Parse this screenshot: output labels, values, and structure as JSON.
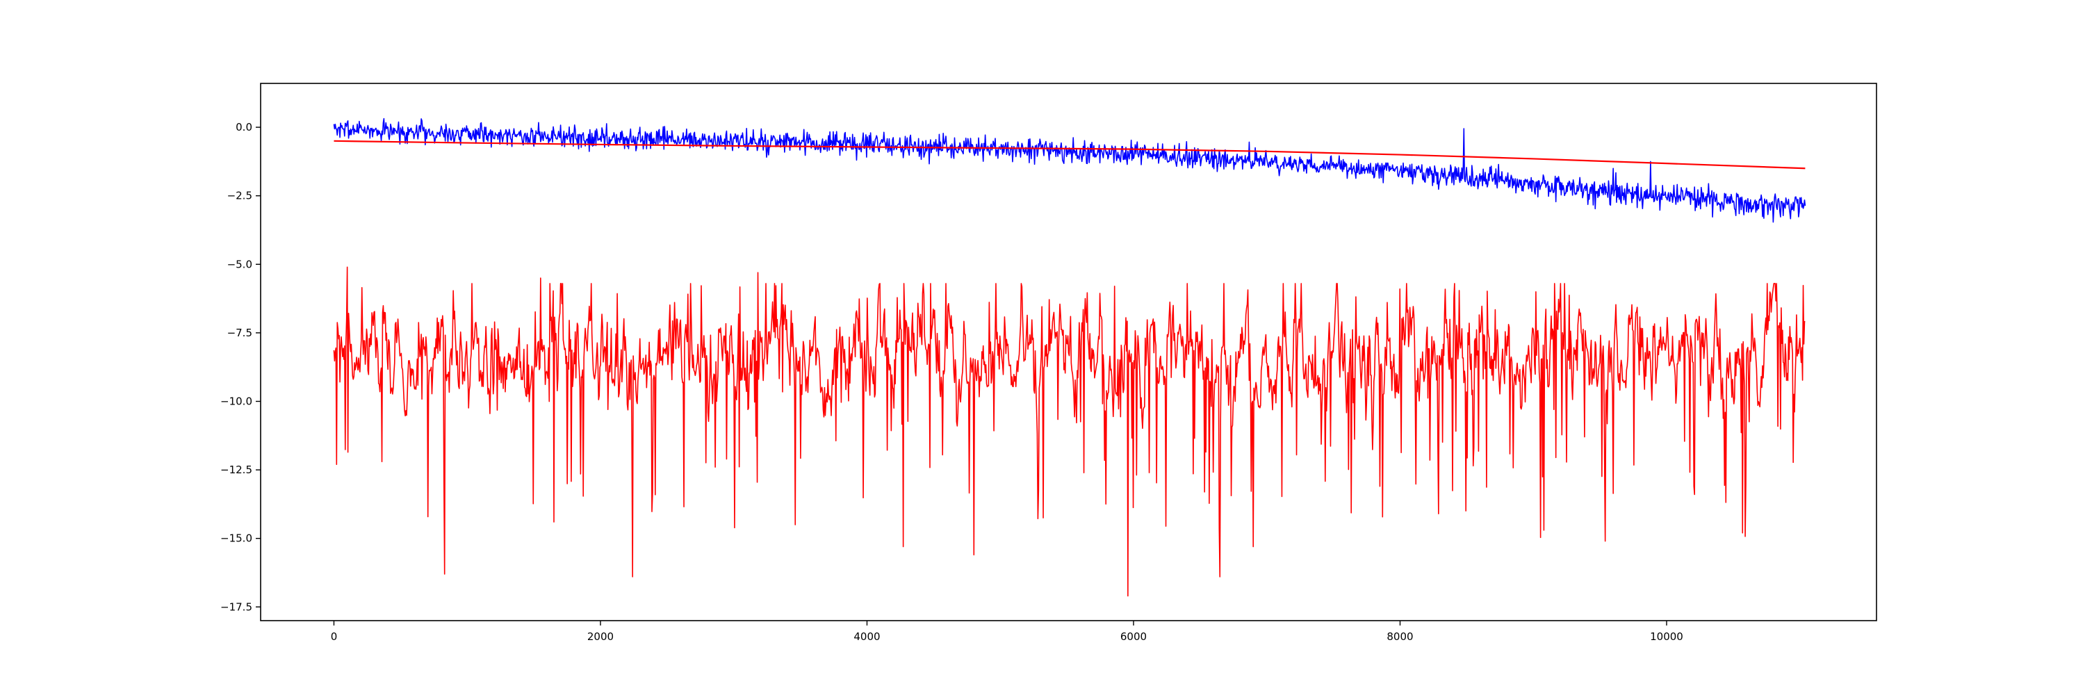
{
  "chart_data": {
    "type": "line",
    "title": "",
    "xlabel": "",
    "ylabel": "",
    "xlim": [
      -550,
      11575
    ],
    "ylim": [
      -18.0,
      1.6
    ],
    "grid": false,
    "legend": "none",
    "x_ticks": [
      0,
      2000,
      4000,
      6000,
      8000,
      10000
    ],
    "x_tick_labels": [
      "0",
      "2000",
      "4000",
      "6000",
      "8000",
      "10000"
    ],
    "y_ticks": [
      0.0,
      -2.5,
      -5.0,
      -7.5,
      -10.0,
      -12.5,
      -15.0,
      -17.5
    ],
    "y_tick_labels": [
      "0.0",
      "−2.5",
      "−5.0",
      "−7.5",
      "−10.0",
      "−12.5",
      "−15.0",
      "−17.5"
    ],
    "series": [
      {
        "color": "#0000ff",
        "style": "noisy",
        "x_range": [
          0,
          11040
        ],
        "points": 2208,
        "trend": {
          "x": [
            0,
            2000,
            4000,
            6000,
            8000,
            9000,
            10000,
            11040
          ],
          "y": [
            -0.05,
            -0.4,
            -0.65,
            -0.95,
            -1.6,
            -2.1,
            -2.55,
            -2.95
          ]
        },
        "noise_amplitude": 0.5,
        "range": [
          -4.1,
          0.8
        ],
        "spikes": [
          {
            "x": 8480,
            "y": -0.05
          },
          {
            "x": 9880,
            "y": -1.25
          },
          {
            "x": 9600,
            "y": -1.5
          }
        ]
      },
      {
        "color": "#ff0000",
        "style": "smooth",
        "x": [
          0,
          1000,
          2000,
          3000,
          4000,
          5000,
          6000,
          7000,
          8000,
          9000,
          10000,
          11040
        ],
        "y": [
          -0.5,
          -0.57,
          -0.63,
          -0.68,
          -0.72,
          -0.76,
          -0.8,
          -0.88,
          -1.0,
          -1.15,
          -1.32,
          -1.5
        ]
      },
      {
        "color": "#ff0000",
        "style": "noisy",
        "x_range": [
          0,
          11040
        ],
        "points": 2208,
        "baseline": -8.3,
        "range": [
          -17.1,
          -5.1
        ],
        "dips": [
          {
            "x": 20,
            "y": -12.3
          },
          {
            "x": 830,
            "y": -16.3
          },
          {
            "x": 1650,
            "y": -14.4
          },
          {
            "x": 2240,
            "y": -16.4
          },
          {
            "x": 3460,
            "y": -14.5
          },
          {
            "x": 4270,
            "y": -15.3
          },
          {
            "x": 4800,
            "y": -15.6
          },
          {
            "x": 5960,
            "y": -17.1
          },
          {
            "x": 6650,
            "y": -16.4
          },
          {
            "x": 6900,
            "y": -15.3
          },
          {
            "x": 8290,
            "y": -14.1
          },
          {
            "x": 9080,
            "y": -14.7
          },
          {
            "x": 9540,
            "y": -15.1
          },
          {
            "x": 10570,
            "y": -14.8
          }
        ],
        "peaks": [
          {
            "x": 100,
            "y": -5.1
          },
          {
            "x": 1550,
            "y": -5.5
          },
          {
            "x": 3180,
            "y": -5.3
          },
          {
            "x": 5860,
            "y": -5.8
          },
          {
            "x": 8000,
            "y": -5.9
          }
        ]
      }
    ]
  }
}
